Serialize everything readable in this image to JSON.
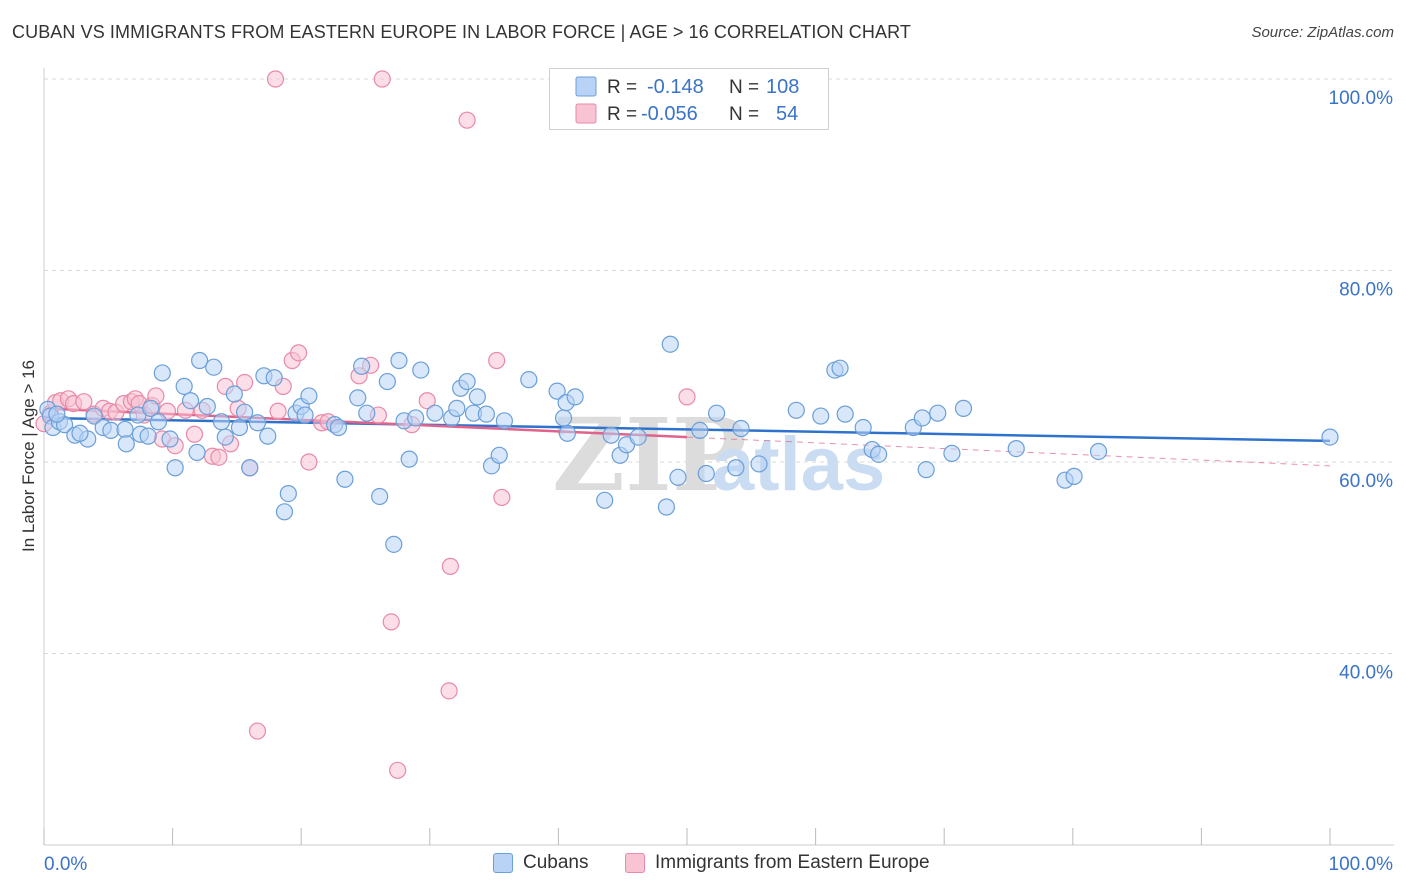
{
  "title": "CUBAN VS IMMIGRANTS FROM EASTERN EUROPE IN LABOR FORCE | AGE > 16 CORRELATION CHART",
  "source": "Source: ZipAtlas.com",
  "watermark": {
    "zip": "ZIP",
    "atlas": "atlas"
  },
  "colors": {
    "cubans_fill": "#b8d3f5",
    "cubans_stroke": "#6b9fd8",
    "cubans_line": "#2f72cc",
    "immigrants_fill": "#f8c3d3",
    "immigrants_stroke": "#e88aa8",
    "immigrants_line": "#e0638b",
    "value_text": "#3a73c8",
    "grid": "#d8d8d8"
  },
  "legend_top": [
    {
      "r_label": "R =",
      "r_value": "-0.148",
      "n_label": "N =",
      "n_value": "108"
    },
    {
      "r_label": "R =",
      "r_value": "-0.056",
      "n_label": "N =",
      "n_value": "54"
    }
  ],
  "legend_bottom": [
    "Cubans",
    "Immigrants from Eastern Europe"
  ],
  "chart_data": {
    "type": "scatter",
    "title": "CUBAN VS IMMIGRANTS FROM EASTERN EUROPE IN LABOR FORCE | AGE > 16 CORRELATION CHART",
    "xlabel": "",
    "ylabel": "In Labor Force | Age > 16",
    "x_ticks": [
      "0.0%",
      "100.0%"
    ],
    "y_ticks": [
      "100.0%",
      "80.0%",
      "60.0%",
      "40.0%"
    ],
    "xlim": [
      0,
      100
    ],
    "ylim": [
      20,
      104
    ],
    "grid": "horizontal dashed",
    "legend_placement": "top-center",
    "series": [
      {
        "name": "Cubans",
        "r": -0.148,
        "n": 108,
        "trend": {
          "x": [
            0,
            100
          ],
          "y": [
            64.6,
            62.2
          ]
        },
        "points": [
          [
            0.3,
            65.5
          ],
          [
            0.5,
            64.8
          ],
          [
            0.7,
            63.6
          ],
          [
            1.2,
            64.2
          ],
          [
            1.6,
            63.9
          ],
          [
            2.4,
            62.8
          ],
          [
            3.4,
            62.4
          ],
          [
            3.9,
            64.8
          ],
          [
            4.6,
            63.6
          ],
          [
            5.2,
            63.3
          ],
          [
            6.3,
            63.4
          ],
          [
            6.4,
            61.9
          ],
          [
            7.3,
            64.9
          ],
          [
            7.5,
            62.9
          ],
          [
            8.1,
            62.7
          ],
          [
            8.3,
            65.6
          ],
          [
            8.9,
            64.2
          ],
          [
            9.2,
            69.3
          ],
          [
            9.8,
            62.4
          ],
          [
            10.2,
            59.4
          ],
          [
            10.9,
            67.9
          ],
          [
            11.4,
            66.4
          ],
          [
            11.9,
            61.0
          ],
          [
            12.1,
            70.6
          ],
          [
            12.7,
            65.8
          ],
          [
            13.2,
            69.9
          ],
          [
            13.8,
            64.2
          ],
          [
            14.1,
            62.6
          ],
          [
            14.8,
            67.1
          ],
          [
            15.2,
            63.6
          ],
          [
            15.6,
            65.2
          ],
          [
            16.0,
            59.4
          ],
          [
            16.6,
            64.1
          ],
          [
            17.1,
            69.0
          ],
          [
            17.4,
            62.7
          ],
          [
            17.9,
            68.8
          ],
          [
            18.7,
            54.8
          ],
          [
            19.0,
            56.7
          ],
          [
            19.6,
            65.1
          ],
          [
            20.0,
            65.8
          ],
          [
            20.3,
            64.9
          ],
          [
            20.6,
            66.9
          ],
          [
            22.6,
            63.9
          ],
          [
            22.9,
            63.6
          ],
          [
            23.4,
            58.2
          ],
          [
            24.4,
            66.7
          ],
          [
            24.7,
            70.0
          ],
          [
            25.1,
            65.1
          ],
          [
            26.1,
            56.4
          ],
          [
            26.7,
            68.4
          ],
          [
            27.2,
            51.4
          ],
          [
            27.6,
            70.6
          ],
          [
            28.0,
            64.3
          ],
          [
            28.4,
            60.3
          ],
          [
            28.9,
            64.6
          ],
          [
            29.3,
            69.6
          ],
          [
            30.4,
            65.1
          ],
          [
            31.7,
            64.6
          ],
          [
            32.1,
            65.6
          ],
          [
            32.4,
            67.7
          ],
          [
            32.9,
            68.4
          ],
          [
            33.4,
            65.1
          ],
          [
            33.7,
            66.8
          ],
          [
            34.4,
            65.0
          ],
          [
            34.8,
            59.6
          ],
          [
            35.4,
            60.7
          ],
          [
            35.8,
            64.3
          ],
          [
            37.7,
            68.6
          ],
          [
            39.9,
            67.4
          ],
          [
            40.4,
            64.6
          ],
          [
            40.6,
            66.2
          ],
          [
            40.7,
            63.0
          ],
          [
            41.3,
            66.8
          ],
          [
            43.6,
            56.0
          ],
          [
            44.1,
            62.8
          ],
          [
            44.8,
            60.7
          ],
          [
            45.3,
            61.8
          ],
          [
            46.2,
            62.6
          ],
          [
            48.4,
            55.3
          ],
          [
            48.7,
            72.3
          ],
          [
            49.3,
            58.4
          ],
          [
            51.0,
            63.3
          ],
          [
            51.5,
            58.8
          ],
          [
            52.3,
            65.1
          ],
          [
            53.8,
            59.4
          ],
          [
            54.2,
            63.5
          ],
          [
            55.6,
            59.8
          ],
          [
            58.5,
            65.4
          ],
          [
            60.4,
            64.8
          ],
          [
            61.5,
            69.6
          ],
          [
            61.9,
            69.8
          ],
          [
            62.3,
            65.0
          ],
          [
            63.7,
            63.6
          ],
          [
            64.4,
            61.3
          ],
          [
            64.9,
            60.8
          ],
          [
            67.6,
            63.6
          ],
          [
            68.3,
            64.6
          ],
          [
            68.6,
            59.2
          ],
          [
            69.5,
            65.1
          ],
          [
            70.6,
            60.9
          ],
          [
            71.5,
            65.6
          ],
          [
            75.6,
            61.4
          ],
          [
            79.4,
            58.1
          ],
          [
            80.1,
            58.5
          ],
          [
            82.0,
            61.1
          ],
          [
            100.0,
            62.6
          ],
          [
            1.0,
            65.0
          ],
          [
            2.8,
            63.0
          ]
        ]
      },
      {
        "name": "Immigrants from Eastern Europe",
        "r": -0.056,
        "n": 54,
        "trend": {
          "x": [
            0,
            50
          ],
          "y": [
            65.6,
            62.6
          ]
        },
        "trend_extended": {
          "x": [
            50,
            100
          ],
          "y": [
            62.6,
            59.6
          ]
        },
        "points": [
          [
            0.0,
            64.0
          ],
          [
            0.5,
            65.1
          ],
          [
            0.9,
            66.2
          ],
          [
            1.3,
            66.4
          ],
          [
            1.9,
            66.6
          ],
          [
            2.3,
            66.1
          ],
          [
            3.1,
            66.3
          ],
          [
            3.9,
            65.0
          ],
          [
            4.6,
            65.6
          ],
          [
            5.1,
            65.3
          ],
          [
            5.6,
            65.2
          ],
          [
            6.2,
            66.1
          ],
          [
            6.8,
            66.3
          ],
          [
            7.1,
            66.6
          ],
          [
            7.4,
            66.1
          ],
          [
            7.8,
            64.9
          ],
          [
            8.4,
            65.9
          ],
          [
            8.7,
            66.9
          ],
          [
            9.2,
            62.4
          ],
          [
            9.6,
            65.3
          ],
          [
            10.2,
            61.7
          ],
          [
            11.0,
            65.4
          ],
          [
            11.7,
            62.9
          ],
          [
            12.3,
            65.4
          ],
          [
            13.1,
            60.6
          ],
          [
            13.6,
            60.5
          ],
          [
            14.1,
            67.9
          ],
          [
            14.5,
            61.9
          ],
          [
            15.1,
            65.6
          ],
          [
            15.6,
            68.3
          ],
          [
            16.0,
            59.4
          ],
          [
            16.6,
            31.9
          ],
          [
            18.2,
            65.3
          ],
          [
            18.6,
            67.9
          ],
          [
            19.3,
            70.6
          ],
          [
            19.8,
            71.4
          ],
          [
            20.6,
            60.0
          ],
          [
            21.6,
            64.1
          ],
          [
            22.1,
            64.2
          ],
          [
            24.5,
            69.0
          ],
          [
            25.4,
            70.1
          ],
          [
            26.0,
            64.9
          ],
          [
            27.0,
            43.3
          ],
          [
            27.5,
            27.8
          ],
          [
            28.6,
            63.9
          ],
          [
            29.8,
            66.4
          ],
          [
            31.6,
            49.1
          ],
          [
            32.9,
            95.7
          ],
          [
            35.2,
            70.6
          ],
          [
            35.6,
            56.3
          ],
          [
            50.0,
            66.8
          ],
          [
            18.0,
            100.0
          ],
          [
            26.3,
            100.0
          ],
          [
            31.5,
            36.1
          ]
        ]
      }
    ]
  }
}
